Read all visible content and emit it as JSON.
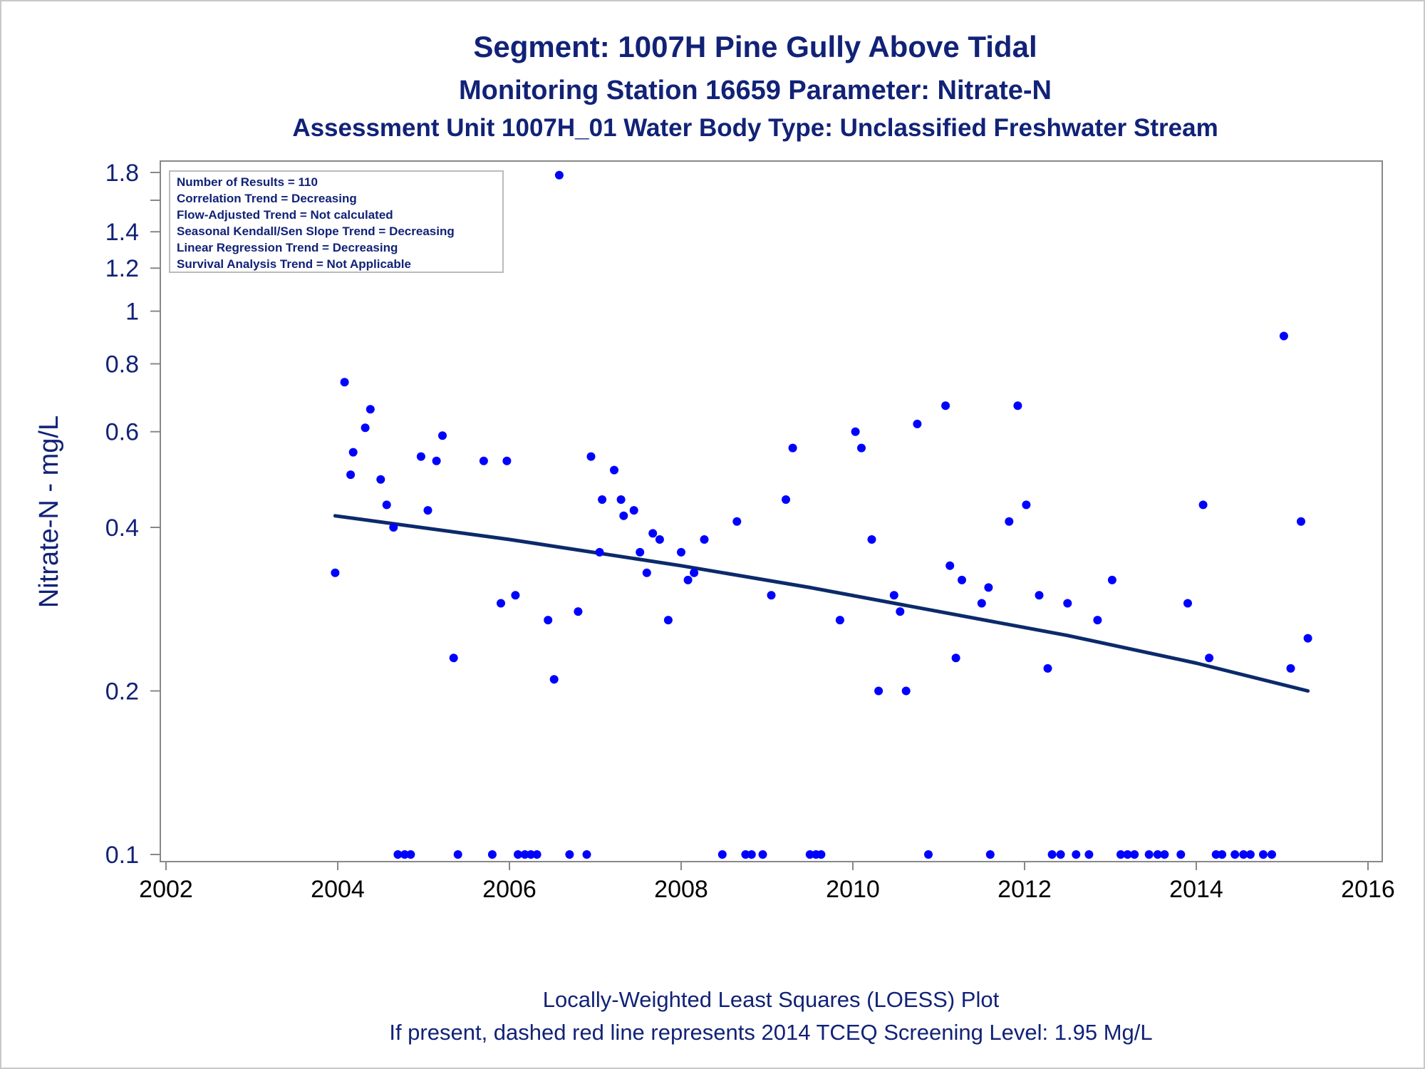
{
  "chart_data": {
    "type": "scatter",
    "title": "Segment: 1007H  Pine Gully Above Tidal",
    "subtitle": "Monitoring Station 16659 Parameter: Nitrate-N",
    "subtitle2": "Assessment Unit 1007H_01   Water Body Type: Unclassified Freshwater Stream",
    "xlabel": "",
    "ylabel": "Nitrate-N - mg/L",
    "footnote1": "Locally-Weighted Least Squares (LOESS) Plot",
    "footnote2": "If present, dashed red line represents 2014 TCEQ Screening Level: 1.95 Mg/L",
    "x_ticks": [
      "2002",
      "2004",
      "2006",
      "2008",
      "2010",
      "2012",
      "2014",
      "2016"
    ],
    "y_ticks": [
      "0.1",
      "0.2",
      "0.4",
      "0.6",
      "0.8",
      "1",
      "1.2",
      "1.4",
      "1.8"
    ],
    "y_minor_ticks": [
      1.6
    ],
    "xlim": [
      2002,
      2016
    ],
    "ylim": [
      0.1,
      1.8
    ],
    "yscale": "log",
    "grid": false,
    "stats_box": {
      "position": "top-left",
      "lines": [
        "Number of Results = 110",
        "Correlation Trend = Decreasing",
        "Flow-Adjusted Trend = Not calculated",
        "Seasonal Kendall/Sen Slope Trend = Decreasing",
        "Linear Regression Trend = Decreasing",
        "Survival Analysis Trend = Not Applicable"
      ]
    },
    "colors": {
      "points": "#0000ff",
      "trend": "#0b2a6b",
      "text": "#112277",
      "axis": "#888888"
    },
    "series": [
      {
        "kind": "points",
        "points": [
          [
            2003.97,
            0.33
          ],
          [
            2004.08,
            0.74
          ],
          [
            2004.15,
            0.5
          ],
          [
            2004.18,
            0.55
          ],
          [
            2004.32,
            0.61
          ],
          [
            2004.38,
            0.66
          ],
          [
            2004.5,
            0.49
          ],
          [
            2004.57,
            0.44
          ],
          [
            2004.65,
            0.4
          ],
          [
            2004.97,
            0.54
          ],
          [
            2005.05,
            0.43
          ],
          [
            2005.15,
            0.53
          ],
          [
            2005.22,
            0.59
          ],
          [
            2005.35,
            0.23
          ],
          [
            2005.7,
            0.53
          ],
          [
            2005.9,
            0.29
          ],
          [
            2005.97,
            0.53
          ],
          [
            2006.07,
            0.3
          ],
          [
            2006.45,
            0.27
          ],
          [
            2006.52,
            0.21
          ],
          [
            2006.58,
            1.78
          ],
          [
            2006.8,
            0.28
          ],
          [
            2006.95,
            0.54
          ],
          [
            2007.08,
            0.45
          ],
          [
            2007.05,
            0.36
          ],
          [
            2007.22,
            0.51
          ],
          [
            2007.3,
            0.45
          ],
          [
            2007.33,
            0.42
          ],
          [
            2007.45,
            0.43
          ],
          [
            2007.52,
            0.36
          ],
          [
            2007.6,
            0.33
          ],
          [
            2007.67,
            0.39
          ],
          [
            2007.75,
            0.38
          ],
          [
            2007.85,
            0.27
          ],
          [
            2008.0,
            0.36
          ],
          [
            2008.08,
            0.32
          ],
          [
            2008.15,
            0.33
          ],
          [
            2008.27,
            0.38
          ],
          [
            2008.65,
            0.41
          ],
          [
            2009.05,
            0.3
          ],
          [
            2009.22,
            0.45
          ],
          [
            2009.3,
            0.56
          ],
          [
            2009.85,
            0.27
          ],
          [
            2010.03,
            0.6
          ],
          [
            2010.1,
            0.56
          ],
          [
            2010.22,
            0.38
          ],
          [
            2010.3,
            0.2
          ],
          [
            2010.48,
            0.3
          ],
          [
            2010.55,
            0.28
          ],
          [
            2010.62,
            0.2
          ],
          [
            2010.75,
            0.62
          ],
          [
            2011.08,
            0.67
          ],
          [
            2011.13,
            0.34
          ],
          [
            2011.2,
            0.23
          ],
          [
            2011.27,
            0.32
          ],
          [
            2011.5,
            0.29
          ],
          [
            2011.58,
            0.31
          ],
          [
            2011.82,
            0.41
          ],
          [
            2011.92,
            0.67
          ],
          [
            2012.02,
            0.44
          ],
          [
            2012.17,
            0.3
          ],
          [
            2012.27,
            0.22
          ],
          [
            2012.5,
            0.29
          ],
          [
            2012.85,
            0.27
          ],
          [
            2013.02,
            0.32
          ],
          [
            2013.9,
            0.29
          ],
          [
            2014.08,
            0.44
          ],
          [
            2014.15,
            0.23
          ],
          [
            2015.02,
            0.9
          ],
          [
            2015.1,
            0.22
          ],
          [
            2015.22,
            0.41
          ],
          [
            2015.3,
            0.25
          ],
          [
            2004.7,
            0.1
          ],
          [
            2004.78,
            0.1
          ],
          [
            2004.85,
            0.1
          ],
          [
            2005.4,
            0.1
          ],
          [
            2005.8,
            0.1
          ],
          [
            2006.1,
            0.1
          ],
          [
            2006.18,
            0.1
          ],
          [
            2006.25,
            0.1
          ],
          [
            2006.32,
            0.1
          ],
          [
            2006.7,
            0.1
          ],
          [
            2006.9,
            0.1
          ],
          [
            2008.48,
            0.1
          ],
          [
            2008.75,
            0.1
          ],
          [
            2008.82,
            0.1
          ],
          [
            2008.95,
            0.1
          ],
          [
            2009.5,
            0.1
          ],
          [
            2009.57,
            0.1
          ],
          [
            2009.63,
            0.1
          ],
          [
            2010.88,
            0.1
          ],
          [
            2011.6,
            0.1
          ],
          [
            2012.32,
            0.1
          ],
          [
            2012.42,
            0.1
          ],
          [
            2012.6,
            0.1
          ],
          [
            2012.75,
            0.1
          ],
          [
            2013.12,
            0.1
          ],
          [
            2013.2,
            0.1
          ],
          [
            2013.28,
            0.1
          ],
          [
            2013.45,
            0.1
          ],
          [
            2013.55,
            0.1
          ],
          [
            2013.63,
            0.1
          ],
          [
            2013.82,
            0.1
          ],
          [
            2014.23,
            0.1
          ],
          [
            2014.3,
            0.1
          ],
          [
            2014.45,
            0.1
          ],
          [
            2014.55,
            0.1
          ],
          [
            2014.63,
            0.1
          ],
          [
            2014.78,
            0.1
          ],
          [
            2014.88,
            0.1
          ]
        ]
      },
      {
        "kind": "trend",
        "points": [
          [
            2003.97,
            0.42
          ],
          [
            2006.0,
            0.38
          ],
          [
            2008.0,
            0.34
          ],
          [
            2009.5,
            0.31
          ],
          [
            2011.0,
            0.28
          ],
          [
            2012.5,
            0.253
          ],
          [
            2014.0,
            0.225
          ],
          [
            2015.3,
            0.2
          ]
        ]
      }
    ]
  }
}
